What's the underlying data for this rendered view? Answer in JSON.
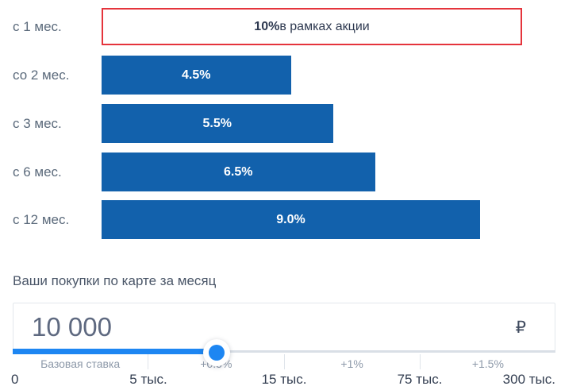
{
  "colors": {
    "bar_blue": "#1261ac",
    "slider_blue": "#1d86f2",
    "promo_red_border": "#e5343c",
    "dark_text": "#2e3950",
    "category_text": "#5b6a7b",
    "muted_label": "#8d99a9",
    "scale_text": "#333e51"
  },
  "chart_data": {
    "type": "bar",
    "orientation": "horizontal",
    "title": "",
    "xlabel": "",
    "ylabel": "",
    "xmax": 10,
    "grid": false,
    "legend": false,
    "categories": [
      "с 1 мес.",
      "со 2 мес.",
      "с 3 мес.",
      "с 6 мес.",
      "с 12 мес."
    ],
    "values": [
      10,
      4.5,
      5.5,
      6.5,
      9.0
    ],
    "rows": [
      {
        "category": "с 1 мес.",
        "value": 10,
        "label_bold": "10%",
        "label_rest": " в рамках акции",
        "style": "promo-outline",
        "gap": "mb13"
      },
      {
        "category": "со 2 мес.",
        "value": 4.5,
        "label": "4.5%",
        "style": "solid",
        "gap": "mb12"
      },
      {
        "category": "с 3 мес.",
        "value": 5.5,
        "label": "5.5%",
        "style": "solid",
        "gap": "mb12"
      },
      {
        "category": "с 6 мес.",
        "value": 6.5,
        "label": "6.5%",
        "style": "solid",
        "gap": "mb11"
      },
      {
        "category": "с 12 мес.",
        "value": 9.0,
        "label": "9.0%",
        "style": "solid",
        "gap": ""
      }
    ]
  },
  "purchases": {
    "title": "Ваши покупки по карте за месяц",
    "amount_input": {
      "value": "10 000",
      "currency_symbol": "₽"
    },
    "slider": {
      "position_pct": 37.5,
      "segments": [
        "Базовая ставка",
        "+0.5%",
        "+1%",
        "+1.5%"
      ],
      "scale": [
        "0",
        "5 тыс.",
        "15 тыс.",
        "75 тыс.",
        "300 тыс."
      ]
    }
  }
}
